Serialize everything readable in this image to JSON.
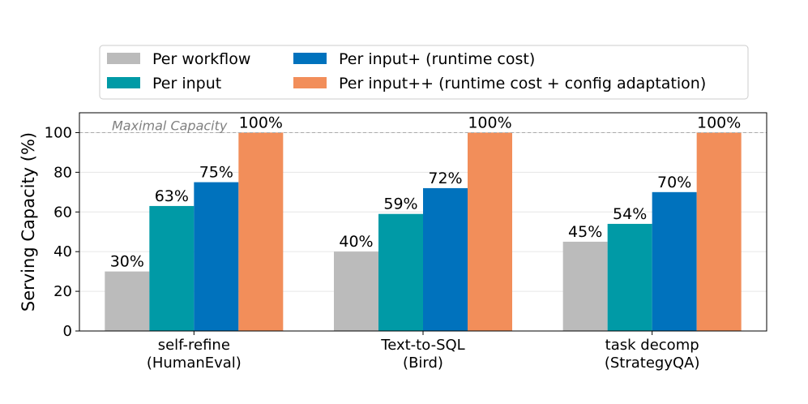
{
  "chart_data": {
    "type": "bar",
    "title": "",
    "xlabel": "",
    "ylabel": "Serving Capacity (%)",
    "ylim": [
      0,
      110
    ],
    "yticks": [
      0,
      20,
      40,
      60,
      80,
      100
    ],
    "grid": true,
    "legend_position": "top",
    "categories": [
      [
        "self-refine",
        "(HumanEval)"
      ],
      [
        "Text-to-SQL",
        "(Bird)"
      ],
      [
        "task decomp",
        "(StrategyQA)"
      ]
    ],
    "series": [
      {
        "name": "Per workflow",
        "color": "#bbbbbb",
        "values": [
          30,
          40,
          45
        ],
        "labels": [
          "30%",
          "40%",
          "45%"
        ]
      },
      {
        "name": "Per input",
        "color": "#009aa6",
        "values": [
          63,
          59,
          54
        ],
        "labels": [
          "63%",
          "59%",
          "54%"
        ]
      },
      {
        "name": "Per input+ (runtime cost)",
        "color": "#0072bd",
        "values": [
          75,
          72,
          70
        ],
        "labels": [
          "75%",
          "72%",
          "70%"
        ]
      },
      {
        "name": "Per input++ (runtime cost + config adaptation)",
        "color": "#f28e5a",
        "values": [
          100,
          100,
          100
        ],
        "labels": [
          "100%",
          "100%",
          "100%"
        ]
      }
    ],
    "reference_line": {
      "value": 100,
      "label": "Maximal Capacity",
      "color": "#aaaaaa"
    }
  }
}
